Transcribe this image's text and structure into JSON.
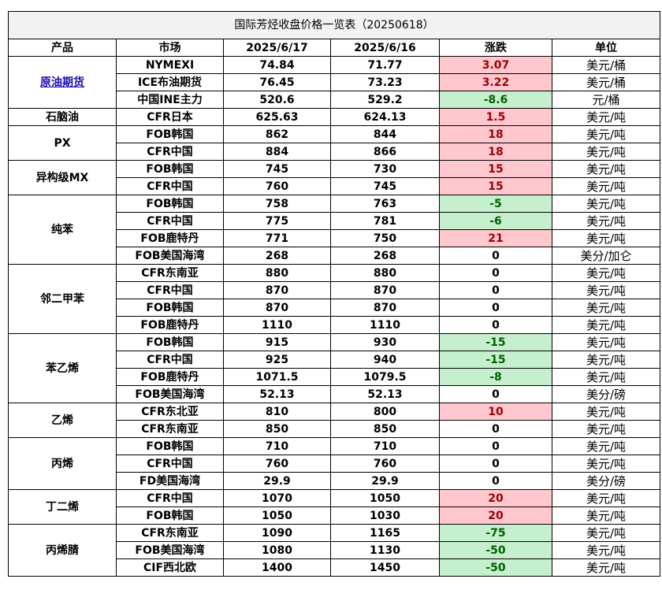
{
  "title": "国际芳烃收盘价格一览表（20250618）",
  "headers": {
    "product": "产品",
    "market": "市场",
    "date1": "2025/6/17",
    "date2": "2025/6/16",
    "change": "涨跌",
    "unit": "单位"
  },
  "colors": {
    "up_bg": "#ffc7ce",
    "up_text": "#9c0006",
    "down_bg": "#c6efce",
    "down_text": "#006100",
    "link": "#1a0dab"
  },
  "groups": [
    {
      "product": "原油期货",
      "link": true,
      "rows": [
        {
          "market": "NYMEXI",
          "v1": "74.84",
          "v2": "71.77",
          "chg": "3.07",
          "dir": "up",
          "unit": "美元/桶"
        },
        {
          "market": "ICE布油期货",
          "v1": "76.45",
          "v2": "73.23",
          "chg": "3.22",
          "dir": "up",
          "unit": "美元/桶"
        },
        {
          "market": "中国INE主力",
          "v1": "520.6",
          "v2": "529.2",
          "chg": "-8.6",
          "dir": "down",
          "unit": "元/桶"
        }
      ]
    },
    {
      "product": "石脑油",
      "rows": [
        {
          "market": "CFR日本",
          "v1": "625.63",
          "v2": "624.13",
          "chg": "1.5",
          "dir": "up",
          "unit": "美元/吨"
        }
      ]
    },
    {
      "product": "PX",
      "rows": [
        {
          "market": "FOB韩国",
          "v1": "862",
          "v2": "844",
          "chg": "18",
          "dir": "up",
          "unit": "美元/吨"
        },
        {
          "market": "CFR中国",
          "v1": "884",
          "v2": "866",
          "chg": "18",
          "dir": "up",
          "unit": "美元/吨"
        }
      ]
    },
    {
      "product": "异构级MX",
      "rows": [
        {
          "market": "FOB韩国",
          "v1": "745",
          "v2": "730",
          "chg": "15",
          "dir": "up",
          "unit": "美元/吨"
        },
        {
          "market": "CFR中国",
          "v1": "760",
          "v2": "745",
          "chg": "15",
          "dir": "up",
          "unit": "美元/吨"
        }
      ]
    },
    {
      "product": "纯苯",
      "rows": [
        {
          "market": "FOB韩国",
          "v1": "758",
          "v2": "763",
          "chg": "-5",
          "dir": "down",
          "unit": "美元/吨"
        },
        {
          "market": "CFR中国",
          "v1": "775",
          "v2": "781",
          "chg": "-6",
          "dir": "down",
          "unit": "美元/吨"
        },
        {
          "market": "FOB鹿特丹",
          "v1": "771",
          "v2": "750",
          "chg": "21",
          "dir": "up",
          "unit": "美元/吨"
        },
        {
          "market": "FOB美国海湾",
          "v1": "268",
          "v2": "268",
          "chg": "0",
          "dir": "flat",
          "unit": "美分/加仑"
        }
      ]
    },
    {
      "product": "邻二甲苯",
      "rows": [
        {
          "market": "CFR东南亚",
          "v1": "880",
          "v2": "880",
          "chg": "0",
          "dir": "flat",
          "unit": "美元/吨"
        },
        {
          "market": "CFR中国",
          "v1": "870",
          "v2": "870",
          "chg": "0",
          "dir": "flat",
          "unit": "美元/吨"
        },
        {
          "market": "FOB韩国",
          "v1": "870",
          "v2": "870",
          "chg": "0",
          "dir": "flat",
          "unit": "美元/吨"
        },
        {
          "market": "FOB鹿特丹",
          "v1": "1110",
          "v2": "1110",
          "chg": "0",
          "dir": "flat",
          "unit": "美元/吨"
        }
      ]
    },
    {
      "product": "苯乙烯",
      "rows": [
        {
          "market": "FOB韩国",
          "v1": "915",
          "v2": "930",
          "chg": "-15",
          "dir": "down",
          "unit": "美元/吨"
        },
        {
          "market": "CFR中国",
          "v1": "925",
          "v2": "940",
          "chg": "-15",
          "dir": "down",
          "unit": "美元/吨"
        },
        {
          "market": "FOB鹿特丹",
          "v1": "1071.5",
          "v2": "1079.5",
          "chg": "-8",
          "dir": "down",
          "unit": "美元/吨"
        },
        {
          "market": "FOB美国海湾",
          "v1": "52.13",
          "v2": "52.13",
          "chg": "0",
          "dir": "flat",
          "unit": "美分/磅"
        }
      ]
    },
    {
      "product": "乙烯",
      "rows": [
        {
          "market": "CFR东北亚",
          "v1": "810",
          "v2": "800",
          "chg": "10",
          "dir": "up",
          "unit": "美元/吨"
        },
        {
          "market": "CFR东南亚",
          "v1": "850",
          "v2": "850",
          "chg": "0",
          "dir": "flat",
          "unit": "美元/吨"
        }
      ]
    },
    {
      "product": "丙烯",
      "rows": [
        {
          "market": "FOB韩国",
          "v1": "710",
          "v2": "710",
          "chg": "0",
          "dir": "flat",
          "unit": "美元/吨"
        },
        {
          "market": "CFR中国",
          "v1": "760",
          "v2": "760",
          "chg": "0",
          "dir": "flat",
          "unit": "美元/吨"
        },
        {
          "market": "FD美国海湾",
          "v1": "29.9",
          "v2": "29.9",
          "chg": "0",
          "dir": "flat",
          "unit": "美分/磅"
        }
      ]
    },
    {
      "product": "丁二烯",
      "rows": [
        {
          "market": "CFR中国",
          "v1": "1070",
          "v2": "1050",
          "chg": "20",
          "dir": "up",
          "unit": "美元/吨"
        },
        {
          "market": "FOB韩国",
          "v1": "1050",
          "v2": "1030",
          "chg": "20",
          "dir": "up",
          "unit": "美元/吨"
        }
      ]
    },
    {
      "product": "丙烯腈",
      "rows": [
        {
          "market": "CFR东南亚",
          "v1": "1090",
          "v2": "1165",
          "chg": "-75",
          "dir": "down",
          "unit": "美元/吨"
        },
        {
          "market": "FOB美国海湾",
          "v1": "1080",
          "v2": "1130",
          "chg": "-50",
          "dir": "down",
          "unit": "美元/吨"
        },
        {
          "market": "CIF西北欧",
          "v1": "1400",
          "v2": "1450",
          "chg": "-50",
          "dir": "down",
          "unit": "美元/吨"
        }
      ]
    }
  ]
}
